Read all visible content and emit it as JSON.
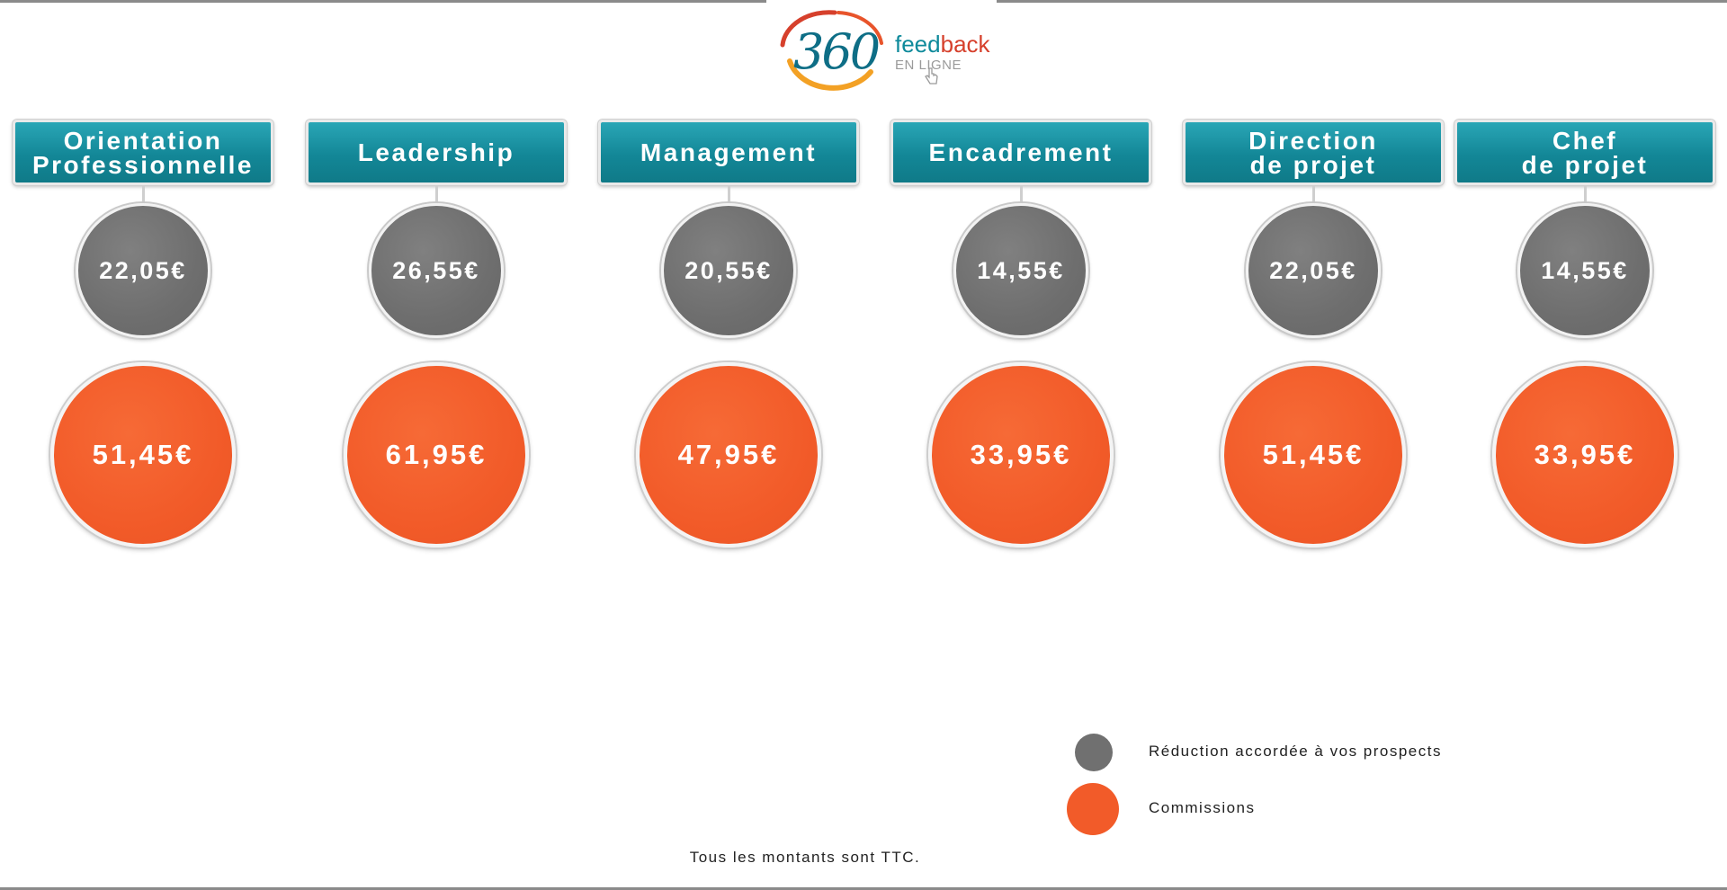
{
  "logo": {
    "number": "360",
    "word_front": "feed",
    "word_back": "back",
    "subtitle": "EN LIGNE",
    "colors": {
      "teal": "#0e6e86",
      "red": "#d6402c",
      "orange": "#f3a125"
    }
  },
  "columns": [
    {
      "title": "Orientation\nProfessionnelle",
      "reduction": "22,05€",
      "commission": "51,45€"
    },
    {
      "title": "Leadership",
      "reduction": "26,55€",
      "commission": "61,95€"
    },
    {
      "title": "Management",
      "reduction": "20,55€",
      "commission": "47,95€"
    },
    {
      "title": "Encadrement",
      "reduction": "14,55€",
      "commission": "33,95€"
    },
    {
      "title": "Direction\nde projet",
      "reduction": "22,05€",
      "commission": "51,45€"
    },
    {
      "title": "Chef\nde projet",
      "reduction": "14,55€",
      "commission": "33,95€"
    }
  ],
  "legend": {
    "reduction_label": "Réduction accordée à vos prospects",
    "commission_label": "Commissions",
    "colors": {
      "reduction": "#707070",
      "commission": "#f25b29",
      "pill": "#138797"
    }
  },
  "footnote": "Tous les montants sont TTC."
}
